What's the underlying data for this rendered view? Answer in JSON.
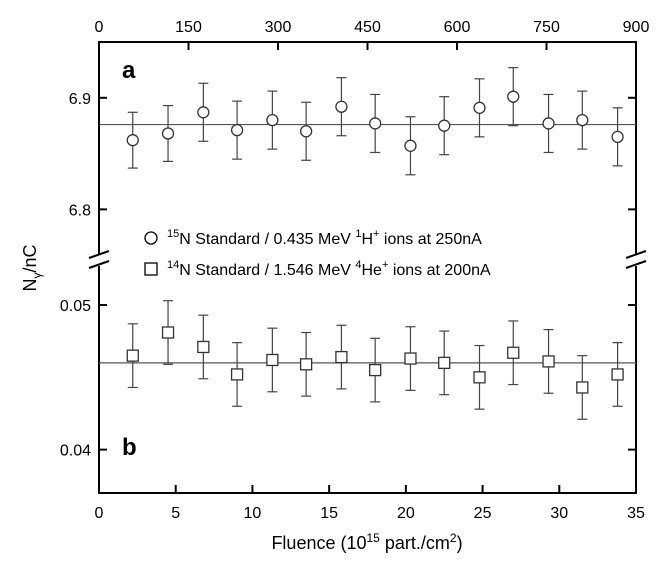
{
  "chart_data": {
    "type": "scatter",
    "xlabel": "Fluence (10",
    "xlabel_sup": "15",
    "xlabel_tail": " part./cm",
    "xlabel_sup2": "2",
    "xlabel_close": ")",
    "ylabel_main": "N",
    "ylabel_sub": "γ",
    "ylabel_tail": "/nC",
    "x_bottom": {
      "range": [
        0,
        35
      ],
      "ticks": [
        "0",
        "5",
        "10",
        "15",
        "20",
        "25",
        "30",
        "35"
      ]
    },
    "x_top": {
      "range": [
        0,
        900
      ],
      "ticks": [
        "0",
        "150",
        "300",
        "450",
        "600",
        "750",
        "900"
      ]
    },
    "panels": [
      {
        "label": "a",
        "ylim": [
          6.76,
          6.95
        ],
        "yticks": [
          "6.8",
          "6.9"
        ],
        "reference_line": 6.876,
        "series": {
          "marker": "circle",
          "legend": {
            "sup1": "15",
            "t1": "N Standard / 0.435 MeV ",
            "sup2": "1",
            "t2": "H",
            "sup3": "+",
            "t3": " ions at 250nA"
          },
          "x": [
            2.2,
            4.5,
            6.8,
            9.0,
            11.3,
            13.5,
            15.8,
            18.0,
            20.3,
            22.5,
            24.8,
            27.0,
            29.3,
            31.5,
            33.8
          ],
          "y": [
            6.862,
            6.868,
            6.887,
            6.871,
            6.88,
            6.87,
            6.892,
            6.877,
            6.857,
            6.875,
            6.891,
            6.901,
            6.877,
            6.88,
            6.865
          ],
          "err": [
            0.025,
            0.025,
            0.026,
            0.026,
            0.026,
            0.026,
            0.026,
            0.026,
            0.026,
            0.026,
            0.026,
            0.026,
            0.026,
            0.026,
            0.026
          ]
        }
      },
      {
        "label": "b",
        "ylim": [
          0.037,
          0.0527
        ],
        "yticks": [
          "0.04",
          "0.05"
        ],
        "reference_line": 0.046,
        "series": {
          "marker": "square",
          "legend": {
            "sup1": "14",
            "t1": "N Standard / 1.546 MeV ",
            "sup2": "4",
            "t2": "He",
            "sup3": "+",
            "t3": " ions at 200nA"
          },
          "x": [
            2.2,
            4.5,
            6.8,
            9.0,
            11.3,
            13.5,
            15.8,
            18.0,
            20.3,
            22.5,
            24.8,
            27.0,
            29.3,
            31.5,
            33.8
          ],
          "y": [
            0.0465,
            0.0481,
            0.0471,
            0.0452,
            0.0462,
            0.0459,
            0.0464,
            0.0455,
            0.0463,
            0.046,
            0.045,
            0.0467,
            0.0461,
            0.0443,
            0.0452
          ],
          "err": [
            0.0022,
            0.0022,
            0.0022,
            0.0022,
            0.0022,
            0.0022,
            0.0022,
            0.0022,
            0.0022,
            0.0022,
            0.0022,
            0.0022,
            0.0022,
            0.0022,
            0.0022
          ]
        }
      }
    ]
  }
}
